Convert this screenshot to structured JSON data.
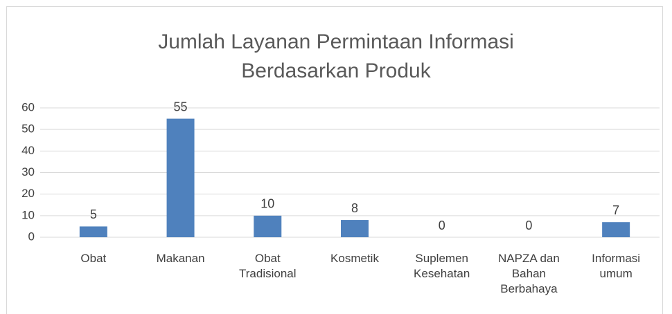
{
  "chart_data": {
    "type": "bar",
    "title": [
      "Jumlah Layanan Permintaan Informasi",
      "Berdasarkan Produk"
    ],
    "categories": [
      "Obat",
      "Makanan",
      "Obat Tradisional",
      "Kosmetik",
      "Suplemen Kesehatan",
      "NAPZA dan Bahan Berbahaya",
      "Informasi umum"
    ],
    "values": [
      5,
      55,
      10,
      8,
      0,
      0,
      7
    ],
    "color": "#4f81bd",
    "ylim": [
      0,
      60
    ],
    "yticks": [
      0,
      10,
      20,
      30,
      40,
      50,
      60
    ],
    "grid": true,
    "data_labels": true
  }
}
